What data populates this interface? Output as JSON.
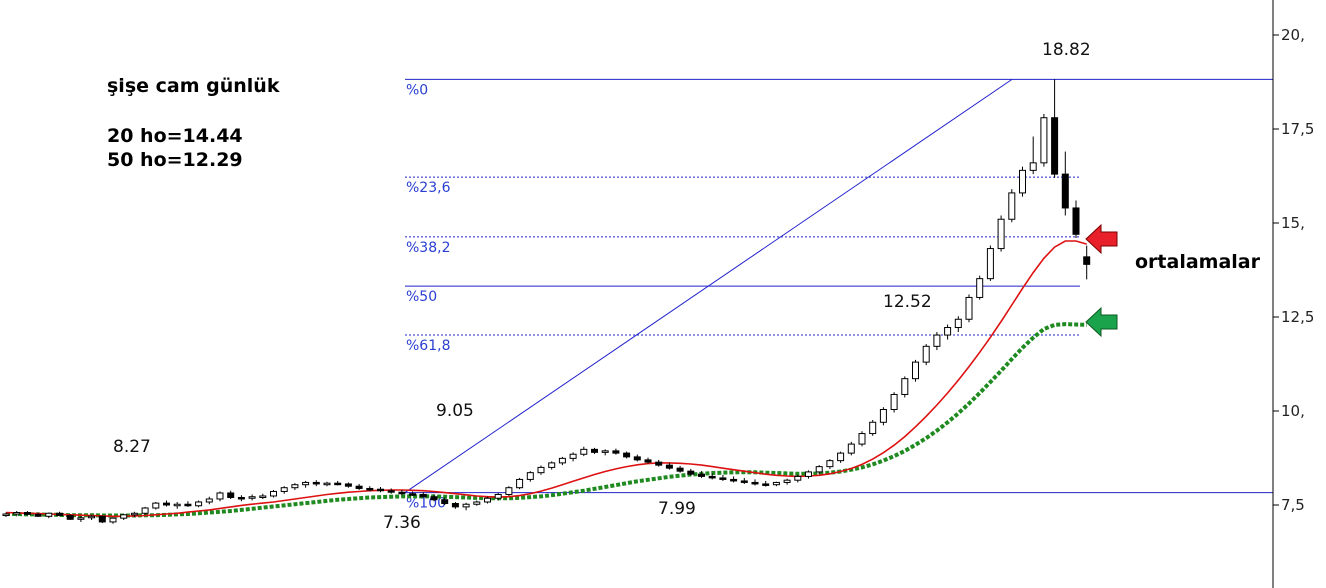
{
  "title": "şişe cam günlük",
  "ma_notes": [
    "20 ho=14.44",
    "50 ho=12.29"
  ],
  "callout": "ortalamalar",
  "colors": {
    "ma20": "#dd1111",
    "ma50": "#1f8a1f",
    "fib": "#2222cc",
    "red_arrow": "#e8202a",
    "green_arrow": "#1aa34a"
  },
  "chart_data": {
    "type": "candlestick",
    "ylim": [
      6.0,
      20.5
    ],
    "y_ticks": [
      {
        "value": 20.0,
        "label": "20,"
      },
      {
        "value": 17.5,
        "label": "17,5"
      },
      {
        "value": 15.0,
        "label": "15,"
      },
      {
        "value": 12.5,
        "label": "12,5"
      },
      {
        "value": 10.0,
        "label": "10,"
      },
      {
        "value": 7.5,
        "label": "7,5"
      }
    ],
    "fibonacci": {
      "low": 7.83,
      "high": 18.82,
      "levels": [
        {
          "label": "%0",
          "value": 18.82,
          "style": "solid"
        },
        {
          "label": "%23,6",
          "value": 16.22,
          "style": "dashed"
        },
        {
          "label": "%38,2",
          "value": 14.63,
          "style": "dashed"
        },
        {
          "label": "%50",
          "value": 13.32,
          "style": "solid"
        },
        {
          "label": "%61,8",
          "value": 12.02,
          "style": "dashed"
        },
        {
          "label": "%100",
          "value": 7.83,
          "style": "solid"
        }
      ]
    },
    "price_labels": [
      "18.82",
      "12.52",
      "9.05",
      "8.27",
      "7.36",
      "7.99"
    ],
    "candles": [
      [
        7.22,
        7.3,
        7.18,
        7.26
      ],
      [
        7.26,
        7.34,
        7.2,
        7.3
      ],
      [
        7.3,
        7.34,
        7.22,
        7.25
      ],
      [
        7.25,
        7.3,
        7.18,
        7.2
      ],
      [
        7.2,
        7.3,
        7.15,
        7.28
      ],
      [
        7.28,
        7.32,
        7.2,
        7.22
      ],
      [
        7.22,
        7.26,
        7.1,
        7.12
      ],
      [
        7.12,
        7.2,
        7.05,
        7.16
      ],
      [
        7.16,
        7.24,
        7.1,
        7.2
      ],
      [
        7.2,
        7.22,
        7.02,
        7.05
      ],
      [
        7.05,
        7.18,
        7.0,
        7.15
      ],
      [
        7.15,
        7.26,
        7.1,
        7.24
      ],
      [
        7.24,
        7.32,
        7.18,
        7.28
      ],
      [
        7.28,
        7.45,
        7.24,
        7.42
      ],
      [
        7.42,
        7.58,
        7.38,
        7.55
      ],
      [
        7.55,
        7.62,
        7.46,
        7.5
      ],
      [
        7.5,
        7.58,
        7.4,
        7.52
      ],
      [
        7.52,
        7.6,
        7.45,
        7.48
      ],
      [
        7.48,
        7.62,
        7.44,
        7.58
      ],
      [
        7.58,
        7.72,
        7.52,
        7.66
      ],
      [
        7.66,
        7.86,
        7.6,
        7.82
      ],
      [
        7.82,
        7.88,
        7.66,
        7.7
      ],
      [
        7.7,
        7.76,
        7.6,
        7.68
      ],
      [
        7.68,
        7.78,
        7.62,
        7.72
      ],
      [
        7.72,
        7.8,
        7.66,
        7.74
      ],
      [
        7.74,
        7.9,
        7.7,
        7.86
      ],
      [
        7.86,
        8.0,
        7.8,
        7.96
      ],
      [
        7.96,
        8.08,
        7.9,
        8.04
      ],
      [
        8.04,
        8.14,
        7.96,
        8.1
      ],
      [
        8.1,
        8.16,
        8.0,
        8.06
      ],
      [
        8.06,
        8.12,
        8.0,
        8.08
      ],
      [
        8.08,
        8.14,
        8.02,
        8.06
      ],
      [
        8.06,
        8.1,
        7.96,
        8.0
      ],
      [
        8.0,
        8.06,
        7.9,
        7.94
      ],
      [
        7.94,
        8.0,
        7.86,
        7.92
      ],
      [
        7.92,
        7.98,
        7.84,
        7.88
      ],
      [
        7.88,
        7.94,
        7.8,
        7.84
      ],
      [
        7.84,
        7.9,
        7.76,
        7.8
      ],
      [
        7.8,
        7.86,
        7.74,
        7.78
      ],
      [
        7.78,
        7.84,
        7.7,
        7.72
      ],
      [
        7.72,
        7.78,
        7.6,
        7.64
      ],
      [
        7.64,
        7.7,
        7.5,
        7.54
      ],
      [
        7.54,
        7.58,
        7.4,
        7.45
      ],
      [
        7.45,
        7.56,
        7.36,
        7.52
      ],
      [
        7.52,
        7.62,
        7.48,
        7.58
      ],
      [
        7.58,
        7.72,
        7.54,
        7.68
      ],
      [
        7.68,
        7.82,
        7.62,
        7.78
      ],
      [
        7.78,
        8.0,
        7.74,
        7.96
      ],
      [
        7.96,
        8.22,
        7.92,
        8.18
      ],
      [
        8.18,
        8.4,
        8.12,
        8.36
      ],
      [
        8.36,
        8.55,
        8.3,
        8.5
      ],
      [
        8.5,
        8.66,
        8.44,
        8.62
      ],
      [
        8.62,
        8.78,
        8.56,
        8.74
      ],
      [
        8.74,
        8.9,
        8.66,
        8.85
      ],
      [
        8.85,
        9.05,
        8.8,
        8.98
      ],
      [
        8.98,
        9.02,
        8.86,
        8.9
      ],
      [
        8.9,
        8.98,
        8.82,
        8.94
      ],
      [
        8.94,
        9.0,
        8.84,
        8.88
      ],
      [
        8.88,
        8.92,
        8.74,
        8.78
      ],
      [
        8.78,
        8.84,
        8.66,
        8.7
      ],
      [
        8.7,
        8.76,
        8.6,
        8.64
      ],
      [
        8.64,
        8.7,
        8.52,
        8.56
      ],
      [
        8.56,
        8.62,
        8.44,
        8.48
      ],
      [
        8.48,
        8.54,
        8.36,
        8.4
      ],
      [
        8.4,
        8.46,
        8.28,
        8.32
      ],
      [
        8.32,
        8.4,
        8.22,
        8.26
      ],
      [
        8.26,
        8.34,
        8.18,
        8.22
      ],
      [
        8.22,
        8.3,
        8.14,
        8.18
      ],
      [
        8.18,
        8.26,
        8.1,
        8.14
      ],
      [
        8.14,
        8.22,
        8.06,
        8.1
      ],
      [
        8.1,
        8.18,
        8.02,
        8.06
      ],
      [
        8.06,
        8.14,
        7.99,
        8.04
      ],
      [
        8.04,
        8.12,
        8.0,
        8.1
      ],
      [
        8.1,
        8.2,
        8.04,
        8.16
      ],
      [
        8.16,
        8.3,
        8.1,
        8.26
      ],
      [
        8.26,
        8.42,
        8.2,
        8.38
      ],
      [
        8.38,
        8.56,
        8.32,
        8.52
      ],
      [
        8.52,
        8.72,
        8.46,
        8.68
      ],
      [
        8.68,
        8.92,
        8.62,
        8.88
      ],
      [
        8.88,
        9.18,
        8.82,
        9.12
      ],
      [
        9.12,
        9.46,
        9.06,
        9.4
      ],
      [
        9.4,
        9.76,
        9.34,
        9.7
      ],
      [
        9.7,
        10.1,
        9.62,
        10.04
      ],
      [
        10.04,
        10.5,
        9.96,
        10.44
      ],
      [
        10.44,
        10.92,
        10.36,
        10.86
      ],
      [
        10.86,
        11.36,
        10.78,
        11.3
      ],
      [
        11.3,
        11.78,
        11.22,
        11.72
      ],
      [
        11.72,
        12.1,
        11.62,
        12.02
      ],
      [
        12.02,
        12.3,
        11.9,
        12.22
      ],
      [
        12.22,
        12.52,
        12.1,
        12.44
      ],
      [
        12.44,
        13.1,
        12.36,
        13.02
      ],
      [
        13.02,
        13.6,
        12.96,
        13.52
      ],
      [
        13.52,
        14.4,
        13.46,
        14.32
      ],
      [
        14.32,
        15.2,
        14.24,
        15.1
      ],
      [
        15.1,
        15.9,
        15.02,
        15.8
      ],
      [
        15.8,
        16.5,
        15.7,
        16.4
      ],
      [
        16.4,
        17.3,
        16.3,
        16.6
      ],
      [
        16.6,
        17.9,
        16.5,
        17.8
      ],
      [
        17.8,
        18.82,
        16.2,
        16.3
      ],
      [
        16.3,
        16.9,
        15.2,
        15.4
      ],
      [
        15.4,
        15.6,
        14.6,
        14.7
      ],
      [
        14.1,
        14.4,
        13.5,
        13.9
      ]
    ],
    "ma20": [
      7.3,
      7.29,
      7.28,
      7.27,
      7.26,
      7.25,
      7.24,
      7.23,
      7.22,
      7.21,
      7.2,
      7.2,
      7.21,
      7.22,
      7.24,
      7.26,
      7.28,
      7.31,
      7.34,
      7.37,
      7.41,
      7.45,
      7.49,
      7.52,
      7.55,
      7.58,
      7.62,
      7.66,
      7.7,
      7.74,
      7.78,
      7.81,
      7.84,
      7.86,
      7.88,
      7.89,
      7.9,
      7.9,
      7.89,
      7.88,
      7.86,
      7.83,
      7.8,
      7.77,
      7.74,
      7.72,
      7.71,
      7.72,
      7.75,
      7.8,
      7.87,
      7.95,
      8.04,
      8.13,
      8.22,
      8.31,
      8.39,
      8.46,
      8.52,
      8.57,
      8.6,
      8.62,
      8.62,
      8.61,
      8.59,
      8.56,
      8.52,
      8.48,
      8.44,
      8.4,
      8.36,
      8.32,
      8.29,
      8.27,
      8.26,
      8.27,
      8.29,
      8.33,
      8.39,
      8.47,
      8.58,
      8.72,
      8.89,
      9.09,
      9.32,
      9.58,
      9.86,
      10.16,
      10.48,
      10.82,
      11.18,
      11.56,
      11.96,
      12.38,
      12.82,
      13.26,
      13.68,
      14.06,
      14.36,
      14.52,
      14.52,
      14.44
    ],
    "ma50": [
      7.26,
      7.26,
      7.25,
      7.25,
      7.24,
      7.24,
      7.23,
      7.23,
      7.23,
      7.22,
      7.22,
      7.22,
      7.22,
      7.23,
      7.23,
      7.24,
      7.25,
      7.26,
      7.28,
      7.3,
      7.32,
      7.34,
      7.37,
      7.4,
      7.43,
      7.46,
      7.49,
      7.52,
      7.55,
      7.58,
      7.61,
      7.64,
      7.66,
      7.68,
      7.7,
      7.71,
      7.72,
      7.73,
      7.73,
      7.73,
      7.73,
      7.72,
      7.71,
      7.7,
      7.69,
      7.68,
      7.68,
      7.68,
      7.69,
      7.71,
      7.73,
      7.76,
      7.8,
      7.84,
      7.88,
      7.93,
      7.98,
      8.03,
      8.08,
      8.13,
      8.17,
      8.21,
      8.25,
      8.28,
      8.31,
      8.33,
      8.35,
      8.36,
      8.37,
      8.37,
      8.37,
      8.36,
      8.35,
      8.34,
      8.33,
      8.33,
      8.34,
      8.36,
      8.39,
      8.44,
      8.5,
      8.58,
      8.68,
      8.8,
      8.94,
      9.1,
      9.28,
      9.48,
      9.7,
      9.94,
      10.2,
      10.48,
      10.77,
      11.07,
      11.38,
      11.68,
      11.95,
      12.18,
      12.29,
      12.31,
      12.3,
      12.29
    ]
  }
}
